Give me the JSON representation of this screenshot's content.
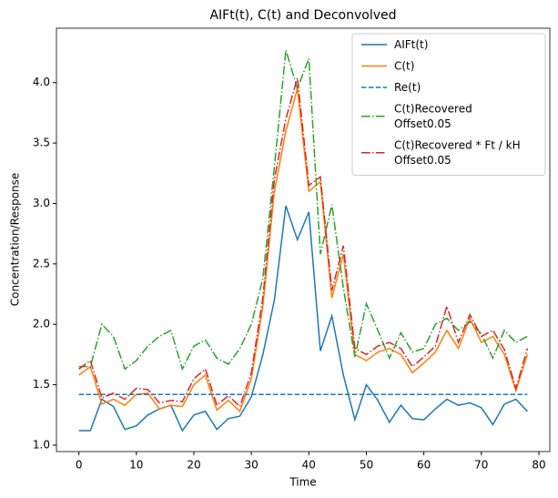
{
  "chart_data": {
    "type": "line",
    "title": "AIFt(t), C(t) and Deconvolved",
    "x_label": "Time",
    "y_label": "Concentration/Response",
    "x": [
      0,
      2,
      4,
      6,
      8,
      10,
      12,
      14,
      16,
      18,
      20,
      22,
      24,
      26,
      28,
      30,
      32,
      34,
      36,
      38,
      40,
      42,
      44,
      46,
      48,
      50,
      52,
      54,
      56,
      58,
      60,
      62,
      64,
      66,
      68,
      70,
      72,
      74,
      76,
      78
    ],
    "series": [
      {
        "name": "AIFt(t)",
        "color": "#1f77b4",
        "dash": "solid",
        "values": [
          1.12,
          1.12,
          1.38,
          1.32,
          1.13,
          1.16,
          1.25,
          1.3,
          1.33,
          1.12,
          1.25,
          1.28,
          1.13,
          1.22,
          1.24,
          1.4,
          1.75,
          2.2,
          2.98,
          2.7,
          2.93,
          1.78,
          2.07,
          1.58,
          1.21,
          1.5,
          1.37,
          1.19,
          1.33,
          1.22,
          1.21,
          1.3,
          1.38,
          1.33,
          1.35,
          1.31,
          1.17,
          1.34,
          1.38,
          1.28
        ]
      },
      {
        "name": "C(t)",
        "color": "#ff7f0e",
        "dash": "solid",
        "values": [
          1.58,
          1.65,
          1.34,
          1.38,
          1.33,
          1.42,
          1.43,
          1.3,
          1.33,
          1.32,
          1.5,
          1.58,
          1.29,
          1.37,
          1.28,
          1.55,
          2.15,
          3.1,
          3.6,
          3.95,
          3.1,
          3.18,
          2.22,
          2.58,
          1.75,
          1.7,
          1.77,
          1.8,
          1.75,
          1.6,
          1.68,
          1.77,
          1.95,
          1.8,
          2.05,
          1.85,
          1.9,
          1.75,
          1.45,
          1.75
        ]
      },
      {
        "name": "Re(t)",
        "color": "#1f77b4",
        "dash": "dashed",
        "values": [
          1.42,
          1.42,
          1.42,
          1.42,
          1.42,
          1.42,
          1.42,
          1.42,
          1.42,
          1.42,
          1.42,
          1.42,
          1.42,
          1.42,
          1.42,
          1.42,
          1.42,
          1.42,
          1.42,
          1.42,
          1.42,
          1.42,
          1.42,
          1.42,
          1.42,
          1.42,
          1.42,
          1.42,
          1.42,
          1.42,
          1.42,
          1.42,
          1.42,
          1.42,
          1.42,
          1.42,
          1.42,
          1.42,
          1.42,
          1.42
        ]
      },
      {
        "name": "C(t)Recovered\nOffset0.05",
        "color": "#2ca02c",
        "dash": "dashdot",
        "values": [
          1.65,
          1.65,
          2.0,
          1.9,
          1.63,
          1.7,
          1.82,
          1.9,
          1.95,
          1.63,
          1.82,
          1.87,
          1.72,
          1.67,
          1.8,
          2.0,
          2.38,
          3.3,
          4.27,
          3.95,
          4.2,
          2.58,
          2.99,
          2.3,
          1.73,
          2.17,
          1.95,
          1.72,
          1.93,
          1.77,
          1.8,
          2.0,
          2.05,
          1.95,
          2.02,
          1.92,
          1.72,
          1.95,
          1.85,
          1.9
        ]
      },
      {
        "name": "C(t)Recovered * Ft / kH\nOffset0.05",
        "color": "#d62728",
        "dash": "dashdot",
        "values": [
          1.63,
          1.7,
          1.39,
          1.43,
          1.38,
          1.47,
          1.46,
          1.35,
          1.37,
          1.36,
          1.55,
          1.63,
          1.33,
          1.41,
          1.32,
          1.6,
          2.22,
          3.2,
          3.7,
          4.04,
          3.15,
          3.22,
          2.28,
          2.65,
          1.8,
          1.75,
          1.82,
          1.85,
          1.8,
          1.65,
          1.73,
          1.82,
          2.15,
          1.85,
          2.08,
          1.9,
          1.95,
          1.79,
          1.47,
          1.8
        ]
      }
    ],
    "xlim": [
      -3.9,
      81.9
    ],
    "ylim": [
      0.947,
      4.45
    ],
    "xticks": [
      0,
      10,
      20,
      30,
      40,
      50,
      60,
      70,
      80
    ],
    "yticks": [
      {
        "value": 1,
        "label": "1.0"
      },
      1.5,
      {
        "value": 2,
        "label": "2.0"
      },
      2.5,
      {
        "value": 3,
        "label": "3.0"
      },
      3.5,
      {
        "value": 4,
        "label": "4.0"
      }
    ],
    "legend": "upper right",
    "grid": false
  }
}
